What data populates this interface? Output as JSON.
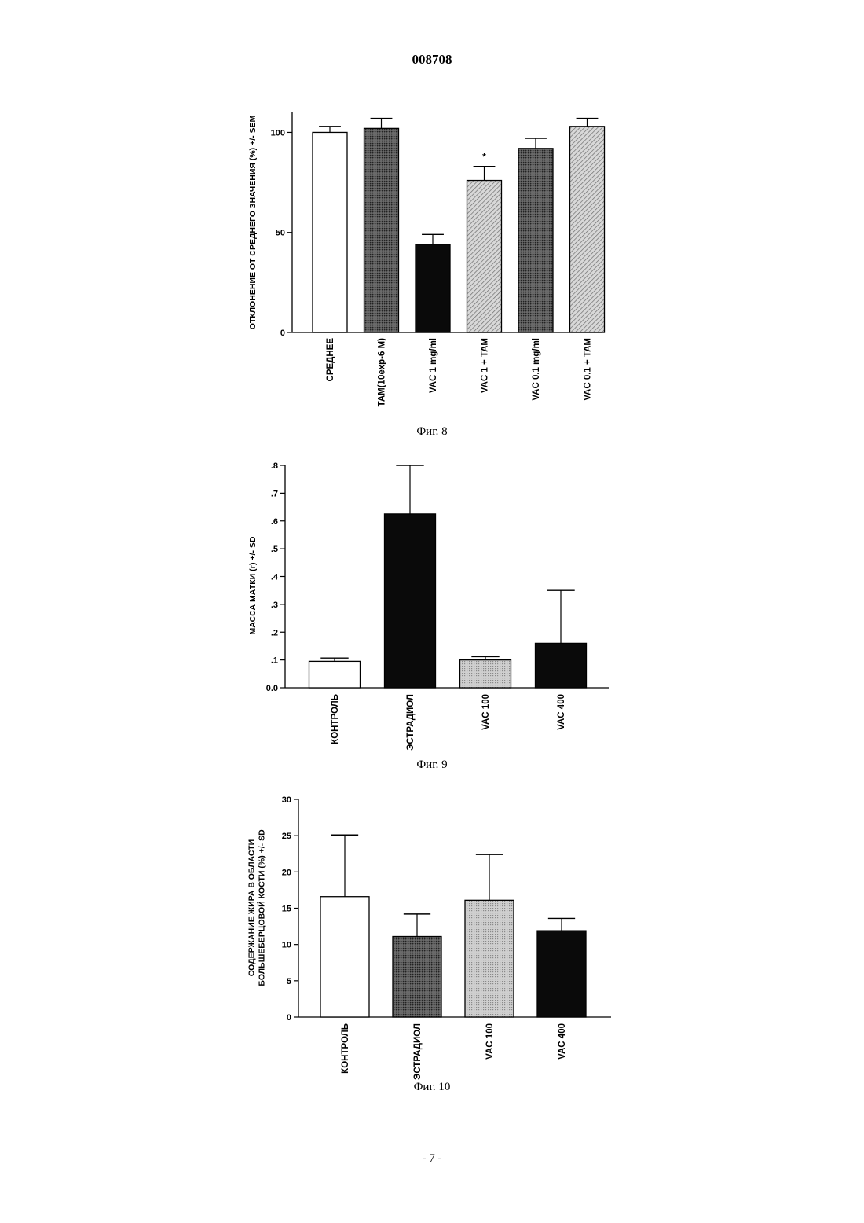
{
  "header": {
    "doc_number": "008708"
  },
  "footer": {
    "page_number": "- 7 -"
  },
  "colors": {
    "ink": "#000000",
    "background": "#ffffff"
  },
  "chart_data": [
    {
      "type": "bar",
      "caption": "Фиг. 8",
      "ylabel": "ОТКЛОНЕНИЕ ОТ СРЕДНЕГО ЗНАЧЕНИЯ (%) +/- SEM",
      "xlabel": "",
      "ylim": [
        0,
        110
      ],
      "yticks": [
        0,
        50,
        100
      ],
      "ytick_labels": [
        "0",
        "50",
        "100"
      ],
      "categories": [
        "СРЕДНЕЕ",
        "TAM(10exp-6 M)",
        "VAC 1 mg/ml",
        "VAC 1 + TAM",
        "VAC 0.1 mg/ml",
        "VAC 0.1 + TAM"
      ],
      "values": [
        100,
        102,
        44,
        76,
        92,
        103
      ],
      "errors": [
        3,
        5,
        5,
        7,
        5,
        4
      ],
      "fills": [
        "white",
        "dark-gray-dots",
        "black",
        "light-gray-hatch",
        "dark-gray-dots",
        "light-gray-hatch"
      ],
      "annotations": [
        {
          "category": "VAC 1 + TAM",
          "text": "*"
        }
      ]
    },
    {
      "type": "bar",
      "caption": "Фиг. 9",
      "ylabel": "МАССА МАТКИ (г) +/- SD",
      "xlabel": "",
      "ylim": [
        0,
        0.8
      ],
      "yticks": [
        0,
        0.1,
        0.2,
        0.3,
        0.4,
        0.5,
        0.6,
        0.7,
        0.8
      ],
      "ytick_labels": [
        "0.0",
        ".1",
        ".2",
        ".3",
        ".4",
        ".5",
        ".6",
        ".7",
        ".8"
      ],
      "categories": [
        "КОНТРОЛЬ",
        "ЭСТРАДИОЛ",
        "VAC 100",
        "VAC 400"
      ],
      "values": [
        0.095,
        0.625,
        0.1,
        0.16
      ],
      "errors": [
        0.012,
        0.175,
        0.012,
        0.19
      ],
      "fills": [
        "white",
        "black",
        "light-gray-dots",
        "black"
      ]
    },
    {
      "type": "bar",
      "caption": "Фиг. 10",
      "ylabel": "СОДЕРЖАНИЕ ЖИРА В ОБЛАСТИ БОЛЬШЕБЕРЦОВОЙ КОСТИ (%) +/- SD",
      "ylabel_lines": [
        "СОДЕРЖАНИЕ ЖИРА В ОБЛАСТИ",
        "БОЛЬШЕБЕРЦОВОЙ КОСТИ (%) +/- SD"
      ],
      "xlabel": "",
      "ylim": [
        0,
        30
      ],
      "yticks": [
        0,
        5,
        10,
        15,
        20,
        25,
        30
      ],
      "ytick_labels": [
        "0",
        "5",
        "10",
        "15",
        "20",
        "25",
        "30"
      ],
      "categories": [
        "КОНТРОЛЬ",
        "ЭСТРАДИОЛ",
        "VAC 100",
        "VAC 400"
      ],
      "values": [
        16.6,
        11.1,
        16.1,
        11.9
      ],
      "errors": [
        8.5,
        3.1,
        6.3,
        1.7
      ],
      "fills": [
        "white",
        "dark-gray-dots",
        "light-gray-dots",
        "black"
      ]
    }
  ]
}
